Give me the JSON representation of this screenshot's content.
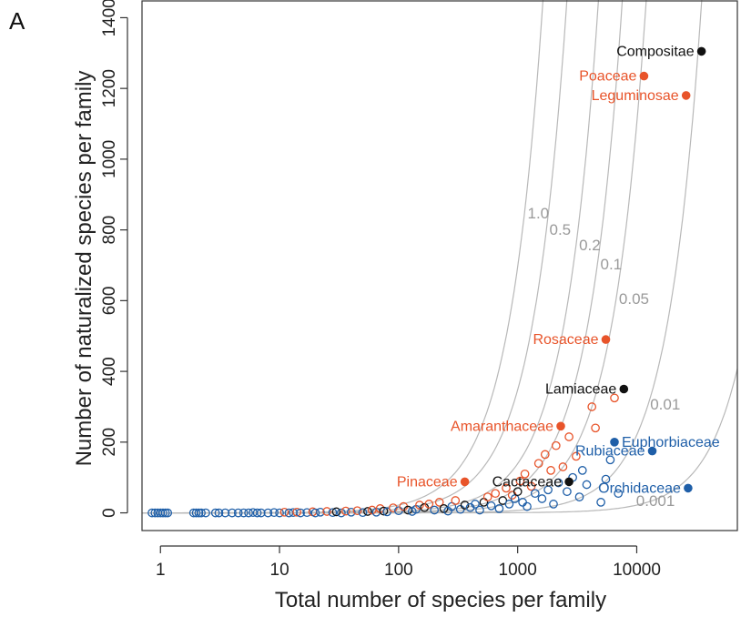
{
  "panel_label": "A",
  "chart_data": {
    "type": "scatter",
    "title": "",
    "xlabel": "Total number of species per family",
    "ylabel": "Number of naturalized species per family",
    "x_scale": "log",
    "xlim": [
      0.7,
      70000
    ],
    "ylim": [
      -50,
      1450
    ],
    "x_ticks": [
      1,
      10,
      100,
      1000,
      10000
    ],
    "x_tick_labels": [
      "1",
      "10",
      "100",
      "1000",
      "10000"
    ],
    "y_ticks": [
      0,
      200,
      400,
      600,
      800,
      1000,
      1200,
      1400
    ],
    "y_tick_labels": [
      "0",
      "200",
      "400",
      "600",
      "800",
      "1000",
      "1200",
      "1400"
    ],
    "grid": false,
    "colors": {
      "red": "#e8542a",
      "black": "#111111",
      "blue": "#1f5fa8",
      "curve": "#b8b8b8",
      "curve_label": "#9a9a9a"
    },
    "curves": [
      {
        "label": "1.0",
        "rate": 1.0
      },
      {
        "label": "0.5",
        "rate": 0.5
      },
      {
        "label": "0.2",
        "rate": 0.2
      },
      {
        "label": "0.1",
        "rate": 0.1
      },
      {
        "label": "0.05",
        "rate": 0.05
      },
      {
        "label": "0.01",
        "rate": 0.01
      },
      {
        "label": "0.001",
        "rate": 0.001
      }
    ],
    "labeled_families": [
      {
        "name": "Compositae",
        "x": 35000,
        "y": 1305,
        "color": "black"
      },
      {
        "name": "Poaceae",
        "x": 11500,
        "y": 1235,
        "color": "red"
      },
      {
        "name": "Leguminosae",
        "x": 26000,
        "y": 1180,
        "color": "red"
      },
      {
        "name": "Rosaceae",
        "x": 5500,
        "y": 490,
        "color": "red"
      },
      {
        "name": "Lamiaceae",
        "x": 7800,
        "y": 350,
        "color": "black"
      },
      {
        "name": "Amaranthaceae",
        "x": 2300,
        "y": 245,
        "color": "red"
      },
      {
        "name": "Euphorbiaceae",
        "x": 6500,
        "y": 200,
        "color": "blue"
      },
      {
        "name": "Rubiaceae",
        "x": 13500,
        "y": 175,
        "color": "blue"
      },
      {
        "name": "Pinaceae",
        "x": 360,
        "y": 88,
        "color": "red"
      },
      {
        "name": "Cactaceae",
        "x": 2700,
        "y": 88,
        "color": "black"
      },
      {
        "name": "Orchidaceae",
        "x": 27000,
        "y": 70,
        "color": "blue"
      }
    ],
    "other_families": [
      {
        "x": 0.85,
        "y": 0,
        "color": "blue"
      },
      {
        "x": 0.9,
        "y": 0,
        "color": "blue"
      },
      {
        "x": 0.95,
        "y": 0,
        "color": "blue"
      },
      {
        "x": 1.0,
        "y": 0,
        "color": "blue"
      },
      {
        "x": 1.05,
        "y": 0,
        "color": "blue"
      },
      {
        "x": 1.1,
        "y": 0,
        "color": "blue"
      },
      {
        "x": 1.15,
        "y": 0,
        "color": "blue"
      },
      {
        "x": 1.9,
        "y": 0,
        "color": "blue"
      },
      {
        "x": 2.0,
        "y": 0,
        "color": "blue"
      },
      {
        "x": 2.1,
        "y": 0,
        "color": "blue"
      },
      {
        "x": 2.2,
        "y": 0,
        "color": "blue"
      },
      {
        "x": 2.4,
        "y": 0,
        "color": "blue"
      },
      {
        "x": 2.9,
        "y": 0,
        "color": "blue"
      },
      {
        "x": 3.1,
        "y": 0,
        "color": "blue"
      },
      {
        "x": 3.5,
        "y": 0,
        "color": "blue"
      },
      {
        "x": 4.0,
        "y": 0,
        "color": "blue"
      },
      {
        "x": 4.5,
        "y": 0,
        "color": "blue"
      },
      {
        "x": 5.0,
        "y": 0,
        "color": "blue"
      },
      {
        "x": 5.5,
        "y": 0,
        "color": "blue"
      },
      {
        "x": 6.0,
        "y": 1,
        "color": "blue"
      },
      {
        "x": 6.5,
        "y": 0,
        "color": "blue"
      },
      {
        "x": 7.0,
        "y": 0,
        "color": "blue"
      },
      {
        "x": 8.0,
        "y": 0,
        "color": "blue"
      },
      {
        "x": 9.0,
        "y": 1,
        "color": "blue"
      },
      {
        "x": 10,
        "y": 0,
        "color": "blue"
      },
      {
        "x": 11,
        "y": 2,
        "color": "red"
      },
      {
        "x": 12,
        "y": 0,
        "color": "blue"
      },
      {
        "x": 13,
        "y": 1,
        "color": "blue"
      },
      {
        "x": 14,
        "y": 2,
        "color": "red"
      },
      {
        "x": 15,
        "y": 0,
        "color": "blue"
      },
      {
        "x": 17,
        "y": 1,
        "color": "blue"
      },
      {
        "x": 19,
        "y": 3,
        "color": "red"
      },
      {
        "x": 20,
        "y": 0,
        "color": "blue"
      },
      {
        "x": 22,
        "y": 2,
        "color": "blue"
      },
      {
        "x": 25,
        "y": 4,
        "color": "red"
      },
      {
        "x": 28,
        "y": 1,
        "color": "blue"
      },
      {
        "x": 30,
        "y": 3,
        "color": "black"
      },
      {
        "x": 33,
        "y": 0,
        "color": "blue"
      },
      {
        "x": 36,
        "y": 5,
        "color": "red"
      },
      {
        "x": 40,
        "y": 2,
        "color": "blue"
      },
      {
        "x": 45,
        "y": 6,
        "color": "red"
      },
      {
        "x": 50,
        "y": 1,
        "color": "blue"
      },
      {
        "x": 55,
        "y": 4,
        "color": "black"
      },
      {
        "x": 60,
        "y": 8,
        "color": "red"
      },
      {
        "x": 65,
        "y": 2,
        "color": "blue"
      },
      {
        "x": 70,
        "y": 12,
        "color": "red"
      },
      {
        "x": 75,
        "y": 5,
        "color": "black"
      },
      {
        "x": 80,
        "y": 3,
        "color": "blue"
      },
      {
        "x": 90,
        "y": 14,
        "color": "red"
      },
      {
        "x": 100,
        "y": 6,
        "color": "blue"
      },
      {
        "x": 110,
        "y": 18,
        "color": "red"
      },
      {
        "x": 120,
        "y": 8,
        "color": "black"
      },
      {
        "x": 130,
        "y": 4,
        "color": "blue"
      },
      {
        "x": 140,
        "y": 10,
        "color": "blue"
      },
      {
        "x": 150,
        "y": 22,
        "color": "red"
      },
      {
        "x": 165,
        "y": 15,
        "color": "black"
      },
      {
        "x": 180,
        "y": 25,
        "color": "red"
      },
      {
        "x": 200,
        "y": 8,
        "color": "blue"
      },
      {
        "x": 220,
        "y": 30,
        "color": "red"
      },
      {
        "x": 240,
        "y": 12,
        "color": "black"
      },
      {
        "x": 260,
        "y": 5,
        "color": "blue"
      },
      {
        "x": 280,
        "y": 18,
        "color": "blue"
      },
      {
        "x": 300,
        "y": 35,
        "color": "red"
      },
      {
        "x": 330,
        "y": 10,
        "color": "blue"
      },
      {
        "x": 360,
        "y": 22,
        "color": "black"
      },
      {
        "x": 400,
        "y": 15,
        "color": "blue"
      },
      {
        "x": 440,
        "y": 25,
        "color": "blue"
      },
      {
        "x": 480,
        "y": 8,
        "color": "blue"
      },
      {
        "x": 520,
        "y": 30,
        "color": "black"
      },
      {
        "x": 560,
        "y": 45,
        "color": "red"
      },
      {
        "x": 600,
        "y": 20,
        "color": "blue"
      },
      {
        "x": 650,
        "y": 55,
        "color": "red"
      },
      {
        "x": 700,
        "y": 12,
        "color": "blue"
      },
      {
        "x": 750,
        "y": 35,
        "color": "black"
      },
      {
        "x": 800,
        "y": 70,
        "color": "red"
      },
      {
        "x": 850,
        "y": 25,
        "color": "blue"
      },
      {
        "x": 900,
        "y": 50,
        "color": "red"
      },
      {
        "x": 950,
        "y": 40,
        "color": "blue"
      },
      {
        "x": 1000,
        "y": 60,
        "color": "black"
      },
      {
        "x": 1050,
        "y": 90,
        "color": "red"
      },
      {
        "x": 1100,
        "y": 30,
        "color": "blue"
      },
      {
        "x": 1150,
        "y": 110,
        "color": "red"
      },
      {
        "x": 1200,
        "y": 18,
        "color": "blue"
      },
      {
        "x": 1300,
        "y": 75,
        "color": "red"
      },
      {
        "x": 1400,
        "y": 55,
        "color": "blue"
      },
      {
        "x": 1500,
        "y": 140,
        "color": "red"
      },
      {
        "x": 1600,
        "y": 40,
        "color": "blue"
      },
      {
        "x": 1700,
        "y": 165,
        "color": "red"
      },
      {
        "x": 1800,
        "y": 65,
        "color": "blue"
      },
      {
        "x": 1900,
        "y": 120,
        "color": "red"
      },
      {
        "x": 2000,
        "y": 25,
        "color": "blue"
      },
      {
        "x": 2100,
        "y": 190,
        "color": "red"
      },
      {
        "x": 2200,
        "y": 85,
        "color": "blue"
      },
      {
        "x": 2400,
        "y": 130,
        "color": "red"
      },
      {
        "x": 2600,
        "y": 60,
        "color": "blue"
      },
      {
        "x": 2700,
        "y": 215,
        "color": "red"
      },
      {
        "x": 2900,
        "y": 100,
        "color": "blue"
      },
      {
        "x": 3100,
        "y": 160,
        "color": "red"
      },
      {
        "x": 3300,
        "y": 45,
        "color": "blue"
      },
      {
        "x": 3500,
        "y": 120,
        "color": "blue"
      },
      {
        "x": 3800,
        "y": 80,
        "color": "blue"
      },
      {
        "x": 4200,
        "y": 300,
        "color": "red"
      },
      {
        "x": 4500,
        "y": 240,
        "color": "red"
      },
      {
        "x": 5000,
        "y": 30,
        "color": "blue"
      },
      {
        "x": 5500,
        "y": 95,
        "color": "blue"
      },
      {
        "x": 6000,
        "y": 150,
        "color": "blue"
      },
      {
        "x": 6500,
        "y": 325,
        "color": "red"
      },
      {
        "x": 7000,
        "y": 55,
        "color": "blue"
      }
    ]
  }
}
